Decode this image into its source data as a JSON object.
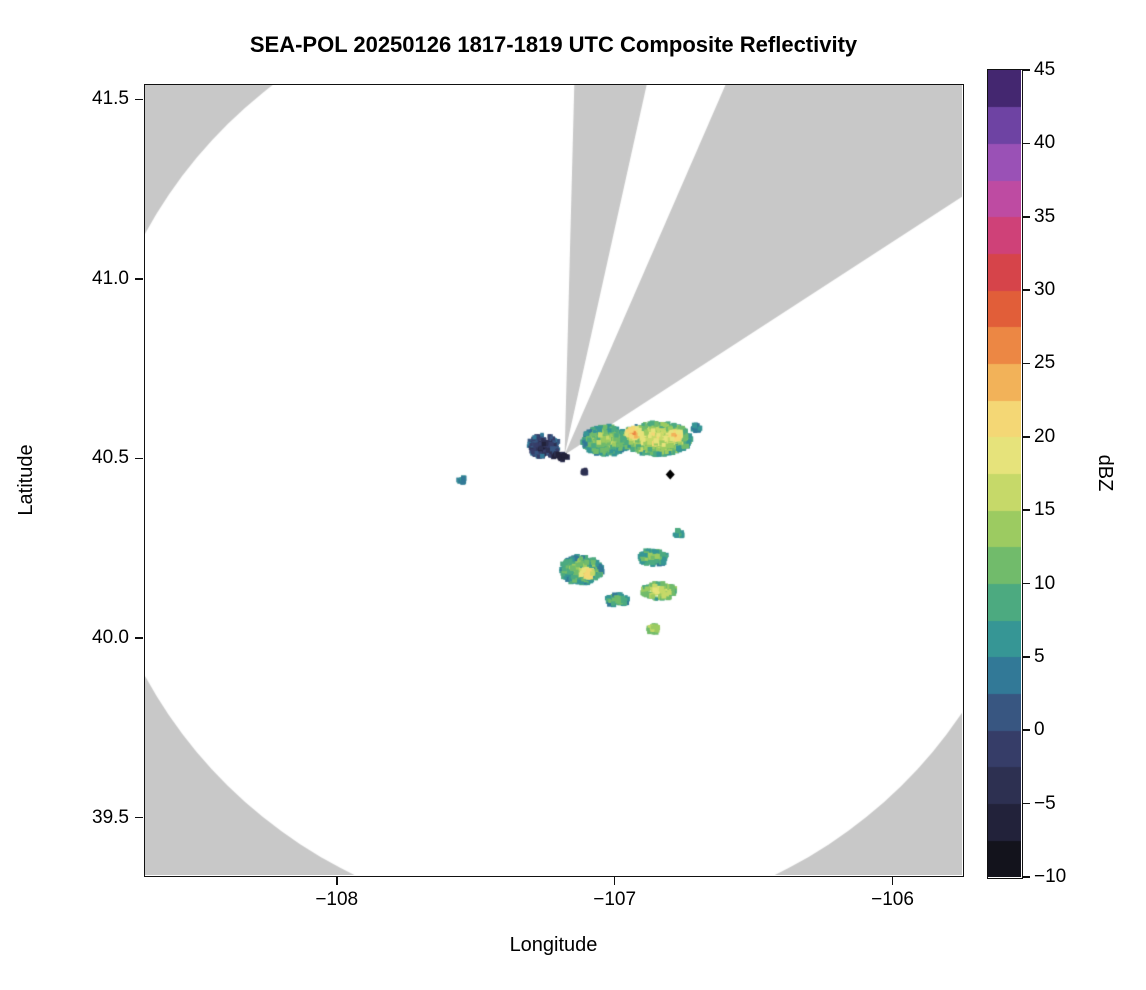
{
  "chart_data": {
    "type": "heatmap",
    "title": "SEA-POL 20250126 1817-1819 UTC Composite Reflectivity",
    "xlabel": "Longitude",
    "ylabel": "Latitude",
    "xlim": [
      -108.69,
      -105.75
    ],
    "ylim": [
      39.34,
      41.54
    ],
    "grid": false,
    "x_ticks": [
      {
        "value": -108,
        "label": "−108"
      },
      {
        "value": -107,
        "label": "−107"
      },
      {
        "value": -106,
        "label": "−106"
      }
    ],
    "y_ticks": [
      {
        "value": 41.5,
        "label": "41.5"
      },
      {
        "value": 41.0,
        "label": "41.0"
      },
      {
        "value": 40.5,
        "label": "40.5"
      },
      {
        "value": 40.0,
        "label": "40.0"
      },
      {
        "value": 39.5,
        "label": "39.5"
      }
    ],
    "colorbar": {
      "label": "dBZ",
      "min": -10,
      "max": 45,
      "band_step": 2.5,
      "ticks": [
        {
          "value": 45,
          "label": "45"
        },
        {
          "value": 40,
          "label": "40"
        },
        {
          "value": 35,
          "label": "35"
        },
        {
          "value": 30,
          "label": "30"
        },
        {
          "value": 25,
          "label": "25"
        },
        {
          "value": 20,
          "label": "20"
        },
        {
          "value": 15,
          "label": "15"
        },
        {
          "value": 10,
          "label": "10"
        },
        {
          "value": 5,
          "label": "5"
        },
        {
          "value": 0,
          "label": "0"
        },
        {
          "value": -5,
          "label": "−5"
        },
        {
          "value": -10,
          "label": "−10"
        }
      ],
      "stops": [
        [
          -10.0,
          "#0a0a0a"
        ],
        [
          -7.5,
          "#1c1b2e"
        ],
        [
          -5.0,
          "#282945"
        ],
        [
          -2.5,
          "#32365c"
        ],
        [
          0.0,
          "#3a4473"
        ],
        [
          2.5,
          "#35678f"
        ],
        [
          5.0,
          "#2f8a9e"
        ],
        [
          7.5,
          "#3da18c"
        ],
        [
          10.0,
          "#5bb273"
        ],
        [
          12.5,
          "#86c363"
        ],
        [
          15.0,
          "#b2d35f"
        ],
        [
          17.5,
          "#d9df73"
        ],
        [
          20.0,
          "#f3e783"
        ],
        [
          22.5,
          "#f4c666"
        ],
        [
          25.0,
          "#f09d4b"
        ],
        [
          27.5,
          "#e7703d"
        ],
        [
          30.0,
          "#da4b34"
        ],
        [
          32.5,
          "#d23d5f"
        ],
        [
          35.0,
          "#cc4590"
        ],
        [
          37.5,
          "#b050b3"
        ],
        [
          40.0,
          "#8351b8"
        ],
        [
          42.5,
          "#58348e"
        ],
        [
          45.0,
          "#301a52"
        ]
      ]
    },
    "background_outside_range": "#c8c8c8",
    "background_inside_range": "#ffffff",
    "radar": {
      "lon": -107.18,
      "lat": 40.51,
      "range_km": 145
    },
    "blocked_sectors_azimuth_deg": [
      [
        1.5,
        12.5
      ],
      [
        23.5,
        57
      ]
    ],
    "site_marker": {
      "lon": -106.8,
      "lat": 40.455,
      "shape": "diamond",
      "color": "#000000"
    },
    "echo_regions": [
      {
        "name": "west-dark-clump",
        "lon": -107.255,
        "lat": 40.535,
        "rx": 0.055,
        "ry": 0.032,
        "core_dbz": -4,
        "edge_dbz": 2,
        "cells": 170,
        "noise": 6
      },
      {
        "name": "radar-dark-specks",
        "lon": -107.195,
        "lat": 40.505,
        "rx": 0.025,
        "ry": 0.01,
        "core_dbz": -7,
        "edge_dbz": -4,
        "cells": 28,
        "noise": 3
      },
      {
        "name": "band-west",
        "lon": -107.03,
        "lat": 40.55,
        "rx": 0.085,
        "ry": 0.04,
        "core_dbz": 15,
        "edge_dbz": 6,
        "cells": 380,
        "noise": 7
      },
      {
        "name": "band-main",
        "lon": -106.85,
        "lat": 40.555,
        "rx": 0.125,
        "ry": 0.045,
        "core_dbz": 20,
        "edge_dbz": 8,
        "cells": 620,
        "noise": 8
      },
      {
        "name": "band-hotspot-west",
        "lon": -106.93,
        "lat": 40.57,
        "rx": 0.028,
        "ry": 0.016,
        "core_dbz": 26,
        "edge_dbz": 18,
        "cells": 60,
        "noise": 4
      },
      {
        "name": "band-hotspot-east",
        "lon": -106.78,
        "lat": 40.565,
        "rx": 0.022,
        "ry": 0.014,
        "core_dbz": 25,
        "edge_dbz": 17,
        "cells": 50,
        "noise": 4
      },
      {
        "name": "band-east-speck",
        "lon": -106.705,
        "lat": 40.585,
        "rx": 0.015,
        "ry": 0.009,
        "core_dbz": 7,
        "edge_dbz": 4,
        "cells": 20,
        "noise": 3
      },
      {
        "name": "west-speck",
        "lon": -107.55,
        "lat": 40.44,
        "rx": 0.014,
        "ry": 0.008,
        "core_dbz": 6,
        "edge_dbz": 4,
        "cells": 16,
        "noise": 3
      },
      {
        "name": "under-band-speck",
        "lon": -107.11,
        "lat": 40.465,
        "rx": 0.012,
        "ry": 0.007,
        "core_dbz": -5,
        "edge_dbz": -2,
        "cells": 10,
        "noise": 4
      },
      {
        "name": "south-patch-1",
        "lon": -107.12,
        "lat": 40.19,
        "rx": 0.075,
        "ry": 0.038,
        "core_dbz": 14,
        "edge_dbz": 6,
        "cells": 320,
        "noise": 7
      },
      {
        "name": "south-patch-1-hotspot",
        "lon": -107.1,
        "lat": 40.18,
        "rx": 0.022,
        "ry": 0.014,
        "core_dbz": 24,
        "edge_dbz": 16,
        "cells": 40,
        "noise": 4
      },
      {
        "name": "south-patch-2",
        "lon": -106.86,
        "lat": 40.225,
        "rx": 0.05,
        "ry": 0.022,
        "core_dbz": 13,
        "edge_dbz": 6,
        "cells": 120,
        "noise": 6
      },
      {
        "name": "south-patch-3",
        "lon": -106.84,
        "lat": 40.13,
        "rx": 0.06,
        "ry": 0.022,
        "core_dbz": 20,
        "edge_dbz": 9,
        "cells": 140,
        "noise": 6
      },
      {
        "name": "south-patch-4",
        "lon": -106.99,
        "lat": 40.105,
        "rx": 0.04,
        "ry": 0.016,
        "core_dbz": 12,
        "edge_dbz": 6,
        "cells": 60,
        "noise": 5
      },
      {
        "name": "south-speck-north",
        "lon": -106.77,
        "lat": 40.29,
        "rx": 0.016,
        "ry": 0.01,
        "core_dbz": 10,
        "edge_dbz": 6,
        "cells": 18,
        "noise": 4
      },
      {
        "name": "south-speck-low",
        "lon": -106.86,
        "lat": 40.025,
        "rx": 0.02,
        "ry": 0.012,
        "core_dbz": 17,
        "edge_dbz": 10,
        "cells": 26,
        "noise": 5
      }
    ]
  }
}
